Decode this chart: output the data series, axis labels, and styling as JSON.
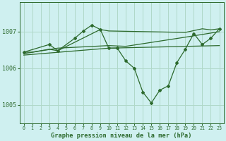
{
  "title": "Graphe pression niveau de la mer (hPa)",
  "background_color": "#cff0f0",
  "grid_color": "#b0d8c8",
  "line_color": "#2d6a2d",
  "xlim": [
    -0.5,
    23.5
  ],
  "ylim": [
    1004.5,
    1007.8
  ],
  "yticks": [
    1005,
    1006,
    1007
  ],
  "xticks": [
    0,
    1,
    2,
    3,
    4,
    5,
    6,
    7,
    8,
    9,
    10,
    11,
    12,
    13,
    14,
    15,
    16,
    17,
    18,
    19,
    20,
    21,
    22,
    23
  ],
  "line1_x": [
    0,
    1,
    3,
    4,
    9,
    10,
    19,
    21,
    22,
    23
  ],
  "line1_y": [
    1006.44,
    1006.44,
    1006.52,
    1006.48,
    1007.06,
    1007.02,
    1006.98,
    1007.08,
    1007.05,
    1007.08
  ],
  "line2_x": [
    0,
    3,
    4,
    6,
    7,
    8,
    9,
    10,
    11,
    12,
    13,
    14,
    15,
    16,
    17,
    18,
    19,
    20,
    21,
    22,
    23
  ],
  "line2_y": [
    1006.44,
    1006.65,
    1006.48,
    1006.82,
    1007.02,
    1007.18,
    1007.06,
    1006.55,
    1006.55,
    1006.2,
    1006.0,
    1005.35,
    1005.05,
    1005.4,
    1005.52,
    1006.15,
    1006.52,
    1006.95,
    1006.65,
    1006.82,
    1007.08
  ],
  "line3_x": [
    0,
    4,
    10,
    12,
    19,
    23
  ],
  "line3_y": [
    1006.4,
    1006.55,
    1006.62,
    1006.6,
    1006.85,
    1007.0
  ],
  "line4_x": [
    0,
    10,
    23
  ],
  "line4_y": [
    1006.36,
    1006.55,
    1006.62
  ]
}
